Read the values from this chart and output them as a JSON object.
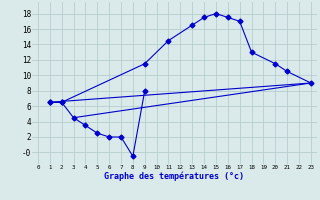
{
  "bg_color": "#daeaea",
  "grid_color": "#b0c8c8",
  "line_color": "#0000cc",
  "xlabel": "Graphe des températures (°c)",
  "xlim": [
    -0.5,
    23.5
  ],
  "ylim": [
    -1.5,
    19.5
  ],
  "xticks": [
    0,
    1,
    2,
    3,
    4,
    5,
    6,
    7,
    8,
    9,
    10,
    11,
    12,
    13,
    14,
    15,
    16,
    17,
    18,
    19,
    20,
    21,
    22,
    23
  ],
  "yticks": [
    0,
    2,
    4,
    6,
    8,
    10,
    12,
    14,
    16,
    18
  ],
  "ytick_labels": [
    "-0",
    "2",
    "4",
    "6",
    "8",
    "10",
    "12",
    "14",
    "16",
    "18"
  ],
  "curve_max_x": [
    1,
    2,
    9,
    11,
    13,
    14,
    15,
    16,
    17,
    18,
    20,
    21,
    23
  ],
  "curve_max_y": [
    6.5,
    6.5,
    11.5,
    14.5,
    16.5,
    17.5,
    18.0,
    17.5,
    17.0,
    13.0,
    11.5,
    10.5,
    9.0
  ],
  "curve_min_x": [
    1,
    2,
    3,
    4,
    5,
    6,
    7,
    8,
    9
  ],
  "curve_min_y": [
    6.5,
    6.5,
    4.5,
    3.5,
    2.5,
    2.0,
    2.0,
    -0.5,
    8.0
  ],
  "line1_x": [
    1,
    23
  ],
  "line1_y": [
    6.5,
    9.0
  ],
  "line2_x": [
    3,
    23
  ],
  "line2_y": [
    4.5,
    9.0
  ]
}
